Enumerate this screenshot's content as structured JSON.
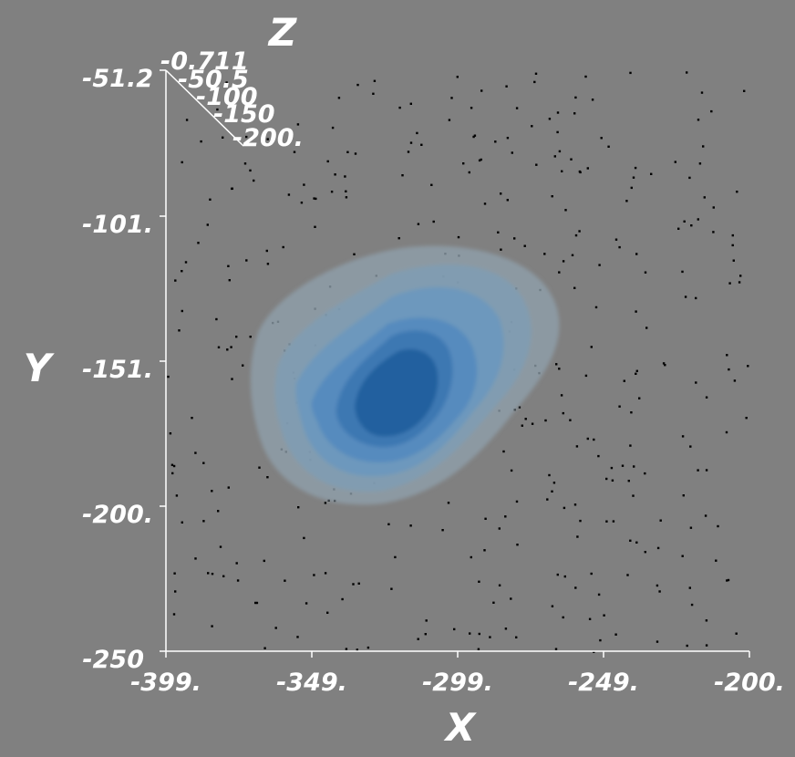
{
  "chart_data": {
    "type": "contour3d",
    "x_axis": {
      "title": "X",
      "range": [
        -399,
        -200
      ],
      "ticks": [
        "-399.",
        "-349.",
        "-299.",
        "-249.",
        "-200."
      ],
      "values": [
        -399,
        -349,
        -299,
        -249,
        -200
      ]
    },
    "y_axis": {
      "title": "Y",
      "range": [
        -250,
        -51.2
      ],
      "ticks": [
        "-51.2",
        "-101.",
        "-151.",
        "-200.",
        "-250"
      ],
      "values": [
        -51.2,
        -101,
        -151,
        -200,
        -250
      ]
    },
    "z_axis": {
      "title": "Z",
      "ticks": [
        "-0.711",
        "-50.5",
        "-100",
        "-150",
        "-200."
      ]
    },
    "density_contours": {
      "peak": [
        -322,
        -167
      ],
      "levels": 6,
      "colors": [
        "#8fa0ac",
        "#7f9db4",
        "#6b98bf",
        "#5489be",
        "#3a76b0",
        "#1f5f9e"
      ]
    },
    "points": {
      "count": 400,
      "x_range": [
        -399,
        -200
      ],
      "y_range": [
        -250,
        -51.2
      ],
      "color": "#000000"
    },
    "background": "#808080",
    "axis_color": "#ffffff"
  }
}
